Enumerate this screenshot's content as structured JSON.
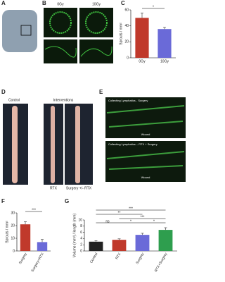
{
  "panel_letters": [
    "A",
    "B",
    "C",
    "D",
    "E",
    "F",
    "G"
  ],
  "b_headers": [
    "0Gy",
    "10Gy"
  ],
  "d_texts": {
    "control": "Control",
    "interventions": "Interventions",
    "rtx": "RTX",
    "surgery_rtx": "Surgery +/- RTX"
  },
  "e_texts": {
    "top_title": "Collecting Lymphatics - Surgery",
    "top_wound": "Wound",
    "bottom_title": "Collecting Lymphatics – RTX + Surgery",
    "bottom_wound": "Wound"
  },
  "chart_data": [
    {
      "type": "bar",
      "ylabel": "Sprouts / mm²",
      "categories": [
        "0Gy",
        "10Gy"
      ],
      "values": [
        50,
        36
      ],
      "errors": [
        6,
        2
      ],
      "colors": [
        "#c0392b",
        "#6a6ad8"
      ],
      "ylim": [
        0,
        60
      ],
      "yticks": [
        0,
        20,
        40,
        60
      ],
      "annotations": [
        "*"
      ]
    },
    {
      "type": "bar",
      "ylabel": "Sprouts / mm²",
      "categories": [
        "Surgery",
        "Surgery+RTX"
      ],
      "values": [
        21,
        7
      ],
      "errors": [
        2,
        2
      ],
      "colors": [
        "#c0392b",
        "#6a6ad8"
      ],
      "ylim": [
        0,
        30
      ],
      "yticks": [
        0,
        10,
        20,
        30
      ],
      "annotations": [
        "***"
      ]
    },
    {
      "type": "bar",
      "ylabel": "Volume (mm³) / length (mm)",
      "categories": [
        "Control",
        "RTX",
        "Surgery",
        "RTX+Surgery"
      ],
      "values": [
        3.0,
        3.6,
        5.2,
        6.8
      ],
      "errors": [
        0.3,
        0.3,
        0.5,
        0.7
      ],
      "colors": [
        "#222222",
        "#c0392b",
        "#6a6ad8",
        "#2e9e4e"
      ],
      "ylim": [
        0,
        10
      ],
      "yticks": [
        0,
        2,
        4,
        6,
        8,
        10
      ],
      "annotations": [
        "***",
        "**",
        "***",
        "ns",
        "*",
        "*"
      ]
    }
  ]
}
